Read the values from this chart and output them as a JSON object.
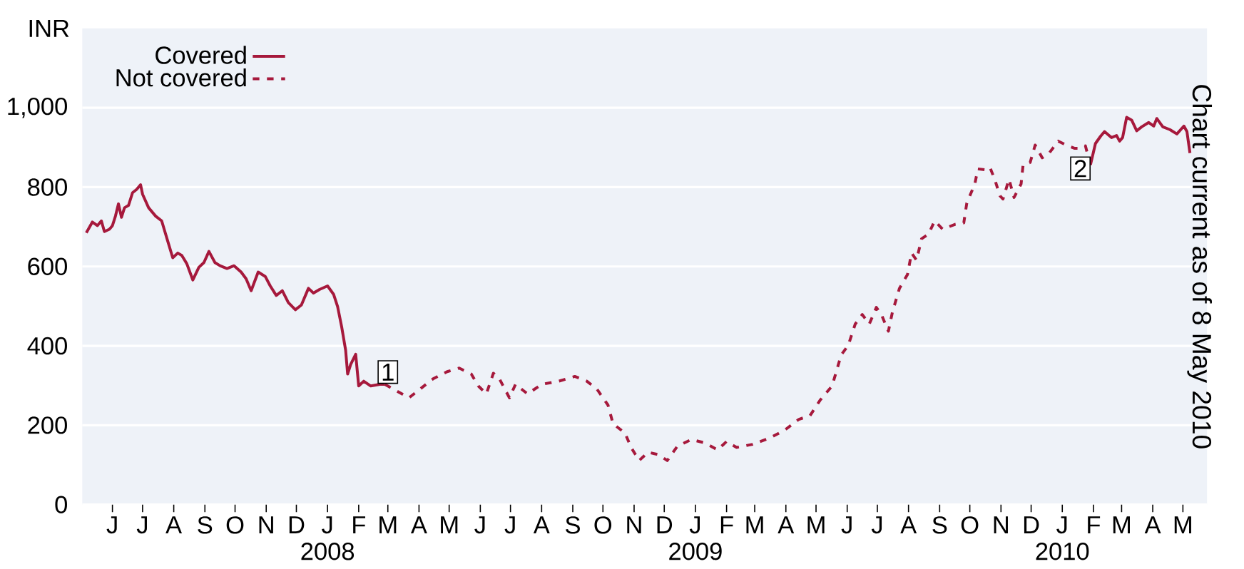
{
  "chart_data": {
    "type": "line",
    "ylabel": "INR",
    "xlim": [
      "2007-05-02",
      "2010-05-25"
    ],
    "ylim": [
      0,
      1200
    ],
    "yticks": [
      0,
      200,
      400,
      600,
      800,
      {
        "value": 1000,
        "label": "1,000"
      }
    ],
    "xticks": [
      {
        "value": "2007-06-01",
        "label": "J"
      },
      {
        "value": "2007-07-01",
        "label": "J"
      },
      {
        "value": "2007-08-01",
        "label": "A"
      },
      {
        "value": "2007-09-01",
        "label": "S"
      },
      {
        "value": "2007-10-01",
        "label": "O"
      },
      {
        "value": "2007-11-01",
        "label": "N"
      },
      {
        "value": "2007-12-01",
        "label": "D"
      },
      {
        "value": "2008-01-01",
        "label": "J 2008"
      },
      {
        "value": "2008-02-01",
        "label": "F"
      },
      {
        "value": "2008-03-01",
        "label": "M"
      },
      {
        "value": "2008-04-01",
        "label": "A"
      },
      {
        "value": "2008-05-01",
        "label": "M"
      },
      {
        "value": "2008-06-01",
        "label": "J"
      },
      {
        "value": "2008-07-01",
        "label": "J"
      },
      {
        "value": "2008-08-01",
        "label": "A"
      },
      {
        "value": "2008-09-01",
        "label": "S"
      },
      {
        "value": "2008-10-01",
        "label": "O"
      },
      {
        "value": "2008-11-01",
        "label": "N"
      },
      {
        "value": "2008-12-01",
        "label": "D"
      },
      {
        "value": "2009-01-01",
        "label": "J 2009"
      },
      {
        "value": "2009-02-01",
        "label": "F"
      },
      {
        "value": "2009-03-01",
        "label": "M"
      },
      {
        "value": "2009-04-01",
        "label": "A"
      },
      {
        "value": "2009-05-01",
        "label": "M"
      },
      {
        "value": "2009-06-01",
        "label": "J"
      },
      {
        "value": "2009-07-01",
        "label": "J"
      },
      {
        "value": "2009-08-01",
        "label": "A"
      },
      {
        "value": "2009-09-01",
        "label": "S"
      },
      {
        "value": "2009-10-01",
        "label": "O"
      },
      {
        "value": "2009-11-01",
        "label": "N"
      },
      {
        "value": "2009-12-01",
        "label": "D"
      },
      {
        "value": "2010-01-01",
        "label": "J 2010"
      },
      {
        "value": "2010-02-01",
        "label": "F"
      },
      {
        "value": "2010-03-01",
        "label": "M"
      },
      {
        "value": "2010-04-01",
        "label": "A"
      },
      {
        "value": "2010-05-01",
        "label": "M"
      }
    ],
    "grid": "y",
    "legend": "top left",
    "series": [
      {
        "name": "Covered",
        "color": "#a6193c",
        "line_style": "solid",
        "x": [
          "2007-05-06",
          "2007-05-12",
          "2007-05-17",
          "2007-05-21",
          "2007-05-24",
          "2007-05-29",
          "2007-06-01",
          "2007-06-04",
          "2007-06-07",
          "2007-06-10",
          "2007-06-13",
          "2007-06-17",
          "2007-06-21",
          "2007-06-25",
          "2007-06-29",
          "2007-07-01",
          "2007-07-07",
          "2007-07-14",
          "2007-07-20",
          "2007-07-26",
          "2007-07-31",
          "2007-08-05",
          "2007-08-09",
          "2007-08-14",
          "2007-08-20",
          "2007-08-26",
          "2007-08-31",
          "2007-09-05",
          "2007-09-11",
          "2007-09-16",
          "2007-09-23",
          "2007-09-30",
          "2007-10-07",
          "2007-10-12",
          "2007-10-17",
          "2007-10-24",
          "2007-10-31",
          "2007-11-05",
          "2007-11-11",
          "2007-11-17",
          "2007-11-23",
          "2007-11-30",
          "2007-12-06",
          "2007-12-13",
          "2007-12-18",
          "2007-12-24",
          "2008-01-01",
          "2008-01-07",
          "2008-01-11",
          "2008-01-15",
          "2008-01-19",
          "2008-01-21",
          "2008-01-24",
          "2008-01-29",
          "2008-02-01",
          "2008-02-06",
          "2008-02-13",
          "2008-02-22",
          "2008-02-27",
          "2009-01-01",
          "2010-01-29",
          "2010-02-03",
          "2010-02-08",
          "2010-02-12",
          "2010-02-19",
          "2010-02-24",
          "2010-02-27",
          "2010-03-02",
          "2010-03-06",
          "2010-03-11",
          "2010-03-16",
          "2010-03-21",
          "2010-03-28",
          "2010-04-02",
          "2010-04-05",
          "2010-04-11",
          "2010-04-18",
          "2010-04-25",
          "2010-05-02",
          "2010-05-05",
          "2010-05-08"
        ],
        "values": [
          685,
          712,
          703,
          715,
          688,
          694,
          703,
          727,
          758,
          724,
          748,
          754,
          786,
          794,
          806,
          782,
          748,
          727,
          715,
          664,
          622,
          634,
          628,
          607,
          566,
          598,
          610,
          638,
          610,
          602,
          595,
          602,
          586,
          569,
          539,
          586,
          575,
          551,
          527,
          539,
          509,
          491,
          503,
          545,
          533,
          542,
          551,
          530,
          499,
          449,
          389,
          329,
          353,
          379,
          299,
          311,
          299,
          303,
          303,
          null,
          856,
          910,
          928,
          940,
          925,
          930,
          916,
          925,
          976,
          969,
          942,
          952,
          963,
          954,
          973,
          952,
          945,
          934,
          954,
          940,
          886
        ]
      },
      {
        "name": "Not covered",
        "color": "#a6193c",
        "line_style": "dashed",
        "x": [
          "2008-02-27",
          "2008-03-22",
          "2008-04-03",
          "2008-04-15",
          "2008-04-29",
          "2008-05-11",
          "2008-05-23",
          "2008-05-30",
          "2008-06-07",
          "2008-06-14",
          "2008-06-20",
          "2008-06-30",
          "2008-07-06",
          "2008-07-18",
          "2008-08-01",
          "2008-08-18",
          "2008-09-03",
          "2008-09-15",
          "2008-09-25",
          "2008-10-06",
          "2008-10-11",
          "2008-10-23",
          "2008-10-29",
          "2008-11-06",
          "2008-11-15",
          "2008-11-25",
          "2008-12-04",
          "2008-12-14",
          "2008-12-28",
          "2009-01-11",
          "2009-01-23",
          "2009-02-01",
          "2009-02-11",
          "2009-02-27",
          "2009-03-16",
          "2009-03-31",
          "2009-04-14",
          "2009-04-25",
          "2009-05-05",
          "2009-05-17",
          "2009-05-26",
          "2009-06-02",
          "2009-06-09",
          "2009-06-16",
          "2009-06-23",
          "2009-06-30",
          "2009-07-05",
          "2009-07-12",
          "2009-07-16",
          "2009-07-23",
          "2009-07-31",
          "2009-08-04",
          "2009-08-09",
          "2009-08-14",
          "2009-08-21",
          "2009-08-27",
          "2009-09-04",
          "2009-09-16",
          "2009-09-25",
          "2009-09-28",
          "2009-10-06",
          "2009-10-09",
          "2009-10-16",
          "2009-10-21",
          "2009-10-26",
          "2009-10-31",
          "2009-11-03",
          "2009-11-09",
          "2009-11-14",
          "2009-11-21",
          "2009-11-23",
          "2009-11-30",
          "2009-12-05",
          "2009-12-12",
          "2009-12-19",
          "2009-12-28",
          "2010-01-05",
          "2010-01-13",
          "2010-01-19",
          "2010-01-24",
          "2010-01-29"
        ],
        "values": [
          303,
          269,
          293,
          317,
          335,
          344,
          329,
          299,
          279,
          331,
          317,
          269,
          303,
          279,
          303,
          311,
          323,
          311,
          291,
          251,
          204,
          180,
          144,
          111,
          132,
          126,
          111,
          147,
          164,
          155,
          138,
          159,
          144,
          152,
          168,
          188,
          215,
          224,
          263,
          299,
          377,
          401,
          455,
          479,
          455,
          497,
          479,
          437,
          485,
          545,
          580,
          634,
          616,
          670,
          682,
          715,
          694,
          706,
          710,
          760,
          808,
          846,
          844,
          850,
          818,
          778,
          770,
          820,
          774,
          808,
          856,
          862,
          906,
          874,
          886,
          916,
          906,
          898,
          898,
          904,
          856
        ]
      }
    ],
    "annotations": [
      {
        "text": "1",
        "x": "2008-03-01",
        "y": 334
      },
      {
        "text": "2",
        "x": "2010-01-19",
        "y": 847
      },
      "Chart current as of 8 May 2010"
    ]
  }
}
